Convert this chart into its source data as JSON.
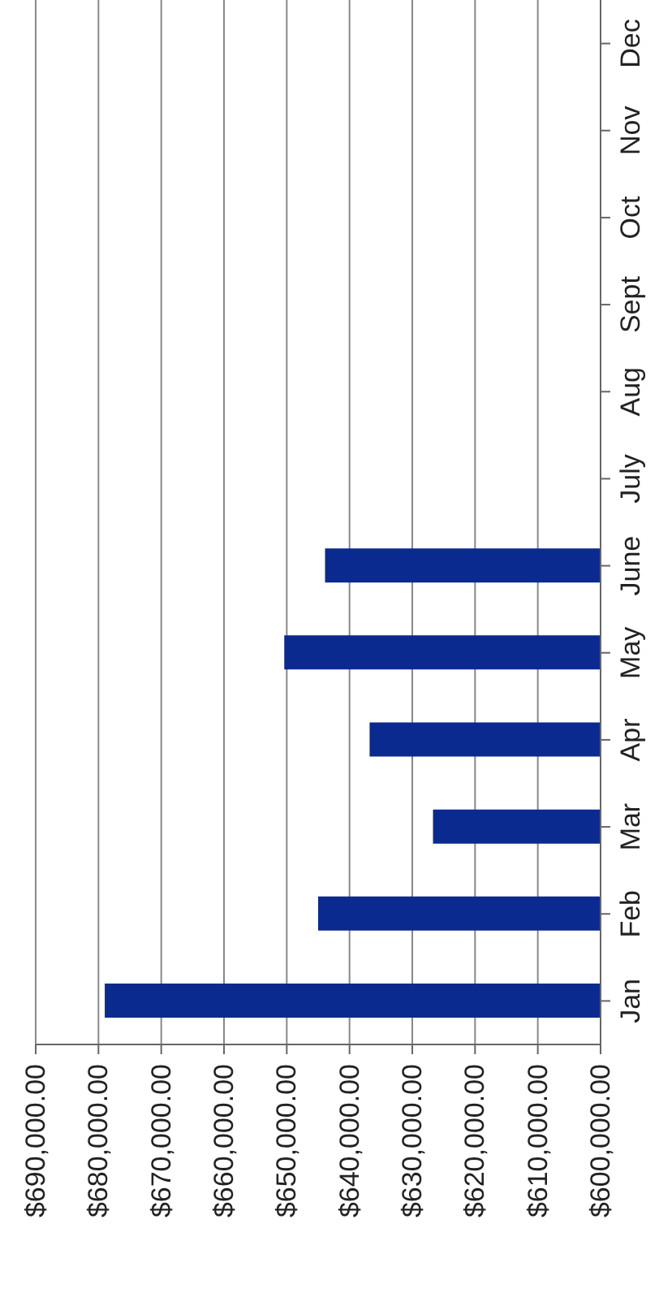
{
  "chart_data": {
    "type": "bar",
    "orientation": "horizontal",
    "categories": [
      "Dec",
      "Nov",
      "Oct",
      "Sept",
      "Aug",
      "July",
      "June",
      "May",
      "Apr",
      "Mar",
      "Feb",
      "Jan"
    ],
    "values": [
      null,
      null,
      null,
      null,
      null,
      null,
      643900,
      650400,
      636800,
      626700,
      645000,
      679000
    ],
    "color": "#0b2a8f",
    "xlim": [
      690000,
      600000
    ],
    "xticks": [
      {
        "value": 690000,
        "label": "$690,000.00"
      },
      {
        "value": 680000,
        "label": "$680,000.00"
      },
      {
        "value": 670000,
        "label": "$670,000.00"
      },
      {
        "value": 660000,
        "label": "$660,000.00"
      },
      {
        "value": 650000,
        "label": "$650,000.00"
      },
      {
        "value": 640000,
        "label": "$640,000.00"
      },
      {
        "value": 630000,
        "label": "$630,000.00"
      },
      {
        "value": 620000,
        "label": "$620,000.00"
      },
      {
        "value": 610000,
        "label": "$610,000.00"
      },
      {
        "value": 600000,
        "label": "$600,000.00"
      }
    ],
    "grid": "x"
  }
}
